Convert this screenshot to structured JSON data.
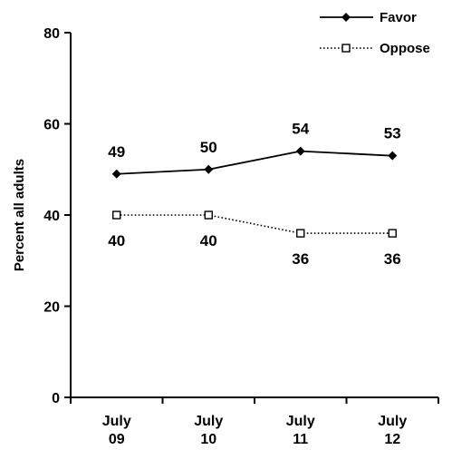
{
  "chart_data": {
    "type": "line",
    "categories": [
      [
        "July",
        "09"
      ],
      [
        "July",
        "10"
      ],
      [
        "July",
        "11"
      ],
      [
        "July",
        "12"
      ]
    ],
    "series": [
      {
        "name": "Favor",
        "values": [
          49,
          50,
          54,
          53
        ],
        "line_style": "solid",
        "marker": "filled-diamond",
        "color": "#000000",
        "label_position": "above"
      },
      {
        "name": "Oppose",
        "values": [
          40,
          40,
          36,
          36
        ],
        "line_style": "dotted",
        "marker": "open-square",
        "color": "#000000",
        "label_position": "below"
      }
    ],
    "ylabel": "Percent all adults",
    "xlabel": "",
    "ylim": [
      0,
      80
    ],
    "yticks": [
      0,
      20,
      40,
      60,
      80
    ],
    "grid": false,
    "legend_placement": "top-right"
  }
}
